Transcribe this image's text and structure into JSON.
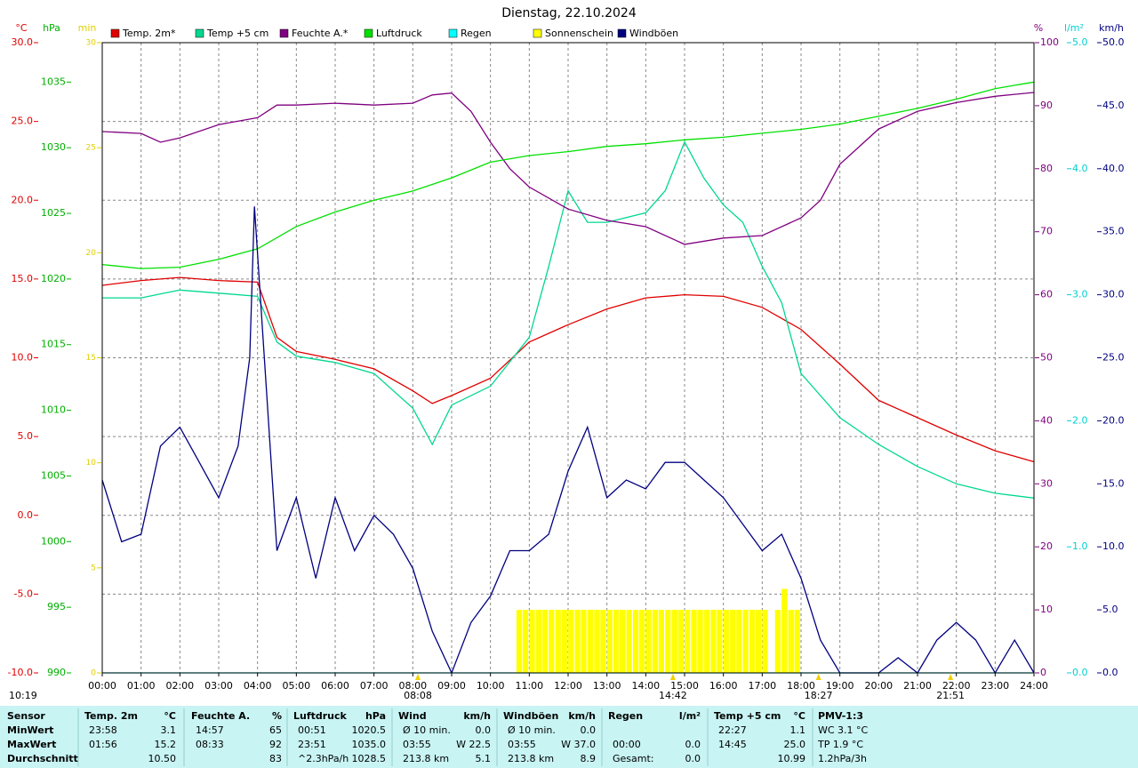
{
  "chart_data": {
    "type": "line",
    "title": "Dienstag, 22.10.2024",
    "time_stamp": "10:19",
    "grid": true,
    "xlim": [
      0,
      24
    ],
    "xticks": [
      {
        "value": 0,
        "label": "00:00"
      },
      {
        "value": 1,
        "label": "01:00"
      },
      {
        "value": 2,
        "label": "02:00"
      },
      {
        "value": 3,
        "label": "03:00"
      },
      {
        "value": 4,
        "label": "04:00"
      },
      {
        "value": 5,
        "label": "05:00"
      },
      {
        "value": 6,
        "label": "06:00"
      },
      {
        "value": 7,
        "label": "07:00"
      },
      {
        "value": 8,
        "label": "08:00"
      },
      {
        "value": 9,
        "label": "09:00"
      },
      {
        "value": 10,
        "label": "10:00"
      },
      {
        "value": 11,
        "label": "11:00"
      },
      {
        "value": 12,
        "label": "12:00"
      },
      {
        "value": 13,
        "label": "13:00"
      },
      {
        "value": 14,
        "label": "14:00"
      },
      {
        "value": 15,
        "label": "15:00"
      },
      {
        "value": 16,
        "label": "16:00"
      },
      {
        "value": 17,
        "label": "17:00"
      },
      {
        "value": 18,
        "label": "18:00"
      },
      {
        "value": 19,
        "label": "19:00"
      },
      {
        "value": 20,
        "label": "20:00"
      },
      {
        "value": 21,
        "label": "21:00"
      },
      {
        "value": 22,
        "label": "22:00"
      },
      {
        "value": 23,
        "label": "23:00"
      },
      {
        "value": 24,
        "label": "24:00"
      }
    ],
    "axes": [
      {
        "label": "°C",
        "side": "left",
        "color": "#e00000",
        "ylim": [
          -10,
          30
        ],
        "yticks": [
          {
            "value": -10,
            "label": "-10.0"
          },
          {
            "value": -5,
            "label": "-5.0"
          },
          {
            "value": 0,
            "label": "0.0"
          },
          {
            "value": 5,
            "label": "5.0"
          },
          {
            "value": 10,
            "label": "10.0"
          },
          {
            "value": 15,
            "label": "15.0"
          },
          {
            "value": 20,
            "label": "20.0"
          },
          {
            "value": 25,
            "label": "25.0"
          },
          {
            "value": 30,
            "label": "30.0"
          }
        ]
      },
      {
        "label": "hPa",
        "side": "left",
        "color": "#00b000",
        "ylim": [
          990,
          1038
        ],
        "yticks": [
          990,
          995,
          1000,
          1005,
          1010,
          1015,
          1020,
          1025,
          1030,
          1035
        ]
      },
      {
        "label": "min",
        "side": "left",
        "color": "#e0d000",
        "ylim": [
          0,
          30
        ],
        "yticks": [
          0,
          5,
          10,
          15,
          20,
          25,
          30
        ]
      },
      {
        "label": "%",
        "side": "right",
        "color": "#800080",
        "ylim": [
          0,
          100
        ],
        "yticks": [
          0,
          10,
          20,
          30,
          40,
          50,
          60,
          70,
          80,
          90,
          100
        ]
      },
      {
        "label": "l/m²",
        "side": "right",
        "color": "#00d0d0",
        "ylim": [
          0,
          5
        ],
        "yticks": [
          {
            "value": 0,
            "label": "0.0"
          },
          {
            "value": 1,
            "label": "1.0"
          },
          {
            "value": 2,
            "label": "2.0"
          },
          {
            "value": 3,
            "label": "3.0"
          },
          {
            "value": 4,
            "label": "4.0"
          },
          {
            "value": 5,
            "label": "5.0"
          }
        ]
      },
      {
        "label": "km/h",
        "side": "right",
        "color": "#000080",
        "ylim": [
          0,
          50
        ],
        "yticks": [
          {
            "value": 0,
            "label": "0.0"
          },
          {
            "value": 5,
            "label": "5.0"
          },
          {
            "value": 10,
            "label": "10.0"
          },
          {
            "value": 15,
            "label": "15.0"
          },
          {
            "value": 20,
            "label": "20.0"
          },
          {
            "value": 25,
            "label": "25.0"
          },
          {
            "value": 30,
            "label": "30.0"
          },
          {
            "value": 35,
            "label": "35.0"
          },
          {
            "value": 40,
            "label": "40.0"
          },
          {
            "value": 45,
            "label": "45.0"
          },
          {
            "value": 50,
            "label": "50.0"
          }
        ]
      }
    ],
    "series": [
      {
        "name": "Temp. 2m*",
        "color": "#e00000",
        "axis": "°C",
        "kind": "line",
        "x": [
          0,
          1,
          2,
          3,
          4,
          4.5,
          5,
          6,
          7,
          8,
          8.5,
          9,
          10,
          11,
          12,
          13,
          14,
          15,
          16,
          17,
          18,
          19,
          20,
          21,
          22,
          23,
          24
        ],
        "values": [
          14.6,
          14.9,
          15.1,
          14.9,
          14.8,
          11.3,
          10.4,
          9.9,
          9.3,
          7.9,
          7.1,
          7.6,
          8.7,
          11.0,
          12.1,
          13.1,
          13.8,
          14.0,
          13.9,
          13.2,
          11.8,
          9.6,
          7.3,
          6.2,
          5.1,
          4.1,
          3.4
        ]
      },
      {
        "name": "Temp +5 cm",
        "color": "#00d890",
        "axis": "°C",
        "kind": "line",
        "x": [
          0,
          1,
          2,
          3,
          4,
          4.5,
          5,
          6,
          7,
          8,
          8.5,
          9,
          10,
          11,
          11.5,
          12,
          12.5,
          13,
          14,
          14.5,
          15,
          15.5,
          16,
          16.5,
          17,
          17.5,
          18,
          19,
          20,
          21,
          22,
          23,
          24
        ],
        "values": [
          13.8,
          13.8,
          14.3,
          14.1,
          13.9,
          11.0,
          10.1,
          9.7,
          9.0,
          6.8,
          4.5,
          7.0,
          8.2,
          11.3,
          15.8,
          20.6,
          18.6,
          18.6,
          19.2,
          20.6,
          23.7,
          21.4,
          19.7,
          18.6,
          15.8,
          13.5,
          9.0,
          6.2,
          4.5,
          3.1,
          2.0,
          1.4,
          1.1
        ]
      },
      {
        "name": "Feuchte A.*",
        "color": "#800080",
        "axis": "%",
        "kind": "line",
        "x": [
          0,
          1,
          1.5,
          2,
          3,
          4,
          4.5,
          5,
          6,
          7,
          8,
          8.5,
          9,
          9.5,
          10,
          10.5,
          11,
          12,
          13,
          14,
          15,
          16,
          17,
          18,
          18.5,
          19,
          20,
          21,
          22,
          23,
          24
        ],
        "values": [
          85.9,
          85.6,
          84.2,
          84.9,
          87.0,
          88.1,
          90.1,
          90.1,
          90.4,
          90.1,
          90.4,
          91.7,
          92.0,
          89.1,
          84.2,
          80.0,
          77.1,
          73.6,
          71.8,
          70.8,
          68.0,
          69.0,
          69.4,
          72.2,
          75.0,
          80.7,
          86.3,
          89.1,
          90.5,
          91.5,
          92.1
        ]
      },
      {
        "name": "Luftdruck",
        "color": "#00e000",
        "axis": "hPa",
        "kind": "line",
        "x": [
          0,
          1,
          2,
          3,
          4,
          5,
          6,
          7,
          8,
          9,
          10,
          11,
          12,
          13,
          14,
          15,
          16,
          17,
          18,
          19,
          20,
          21,
          22,
          23,
          24
        ],
        "values": [
          1021.1,
          1020.8,
          1020.9,
          1021.5,
          1022.3,
          1024.0,
          1025.1,
          1026.0,
          1026.7,
          1027.7,
          1028.9,
          1029.4,
          1029.7,
          1030.1,
          1030.3,
          1030.6,
          1030.8,
          1031.1,
          1031.4,
          1031.8,
          1032.4,
          1033.0,
          1033.7,
          1034.5,
          1035.0
        ]
      },
      {
        "name": "Regen",
        "color": "#00ffff",
        "axis": "l/m²",
        "kind": "line",
        "x": [
          0,
          24
        ],
        "values": [
          0,
          0
        ]
      },
      {
        "name": "Sonnenschein",
        "color": "#ffff00",
        "axis": "min",
        "kind": "bar",
        "x": [
          10.67,
          10.83,
          11,
          11.17,
          11.33,
          11.5,
          11.67,
          11.83,
          12,
          12.17,
          12.33,
          12.5,
          12.67,
          12.83,
          13,
          13.17,
          13.33,
          13.5,
          13.67,
          13.83,
          14,
          14.17,
          14.33,
          14.5,
          14.67,
          14.83,
          15,
          15.17,
          15.33,
          15.5,
          15.67,
          15.83,
          16,
          16.17,
          16.33,
          16.5,
          16.67,
          16.83,
          17,
          17.17,
          17.33,
          17.5,
          17.67,
          17.83
        ],
        "values": [
          3,
          3,
          3,
          3,
          3,
          3,
          3,
          3,
          3,
          3,
          3,
          3,
          3,
          3,
          3,
          3,
          3,
          3,
          3,
          3,
          3,
          3,
          3,
          3,
          3,
          3,
          3,
          3,
          3,
          3,
          3,
          3,
          3,
          3,
          3,
          3,
          3,
          3,
          3,
          0,
          3,
          4,
          3,
          3
        ]
      },
      {
        "name": "Windböen",
        "color": "#000080",
        "axis": "km/h",
        "kind": "line",
        "x": [
          0,
          0.5,
          1,
          1.5,
          2,
          2.5,
          3,
          3.5,
          3.8,
          3.92,
          4.5,
          5,
          5.5,
          6,
          6.5,
          7,
          7.5,
          8,
          8.5,
          9,
          9.5,
          10,
          10.5,
          11,
          11.5,
          12,
          12.5,
          13,
          13.5,
          14,
          14.5,
          15,
          15.5,
          16,
          16.5,
          17,
          17.5,
          18,
          18.5,
          19,
          19.5,
          20,
          20.5,
          21,
          21.5,
          22,
          22.5,
          23,
          23.5,
          24
        ],
        "values": [
          15.3,
          10.4,
          11,
          18,
          19.5,
          16.7,
          13.9,
          18,
          25,
          37,
          9.7,
          13.9,
          7.5,
          13.9,
          9.7,
          12.5,
          11,
          8.3,
          3.3,
          0,
          4,
          6.1,
          9.7,
          9.7,
          11,
          16,
          19.5,
          13.9,
          15.3,
          14.6,
          16.7,
          16.7,
          15.3,
          13.9,
          11.8,
          9.7,
          11,
          7.5,
          2.6,
          0,
          0,
          0,
          1.2,
          0,
          2.6,
          4,
          2.6,
          0,
          2.6,
          0
        ]
      }
    ],
    "annotations": [
      {
        "x": 8.13,
        "label": "08:08"
      },
      {
        "x": 14.7,
        "label": "14:42"
      },
      {
        "x": 18.45,
        "label": "18:27"
      },
      {
        "x": 21.85,
        "label": "21:51"
      }
    ]
  },
  "stats": {
    "header": [
      [
        "Sensor"
      ],
      [
        "Temp. 2m",
        "°C"
      ],
      [
        "Feuchte A.",
        "%"
      ],
      [
        "Luftdruck",
        "hPa"
      ],
      [
        "Wind",
        "km/h"
      ],
      [
        "Windböen",
        "km/h"
      ],
      [
        "Regen",
        "l/m²"
      ],
      [
        "Temp +5 cm",
        "°C"
      ],
      [
        "PMV-1:3"
      ]
    ],
    "rows": [
      {
        "label": "MinWert",
        "cells": [
          [
            "23:58",
            "3.1"
          ],
          [
            "14:57",
            "65"
          ],
          [
            "00:51",
            "1020.5"
          ],
          [
            "Ø 10 min.",
            "0.0"
          ],
          [
            "Ø 10 min.",
            "0.0"
          ],
          [],
          [
            "22:27",
            "1.1"
          ],
          [
            "WC 3.1 °C"
          ]
        ]
      },
      {
        "label": "MaxWert",
        "cells": [
          [
            "01:56",
            "15.2"
          ],
          [
            "08:33",
            "92"
          ],
          [
            "23:51",
            "1035.0"
          ],
          [
            "03:55",
            "W 22.5"
          ],
          [
            "03:55",
            "W 37.0"
          ],
          [
            "00:00",
            "0.0"
          ],
          [
            "14:45",
            "25.0"
          ],
          [
            "TP 1.9 °C"
          ]
        ]
      },
      {
        "label": "Durchschnitt",
        "cells": [
          [
            "10.50"
          ],
          [
            "83"
          ],
          [
            "^2.3hPa/h",
            "1028.5"
          ],
          [
            "213.8 km",
            "5.1"
          ],
          [
            "213.8 km",
            "8.9"
          ],
          [
            "Gesamt:",
            "0.0"
          ],
          [
            "10.99"
          ],
          [
            "1.2hPa/3h"
          ]
        ]
      }
    ]
  }
}
